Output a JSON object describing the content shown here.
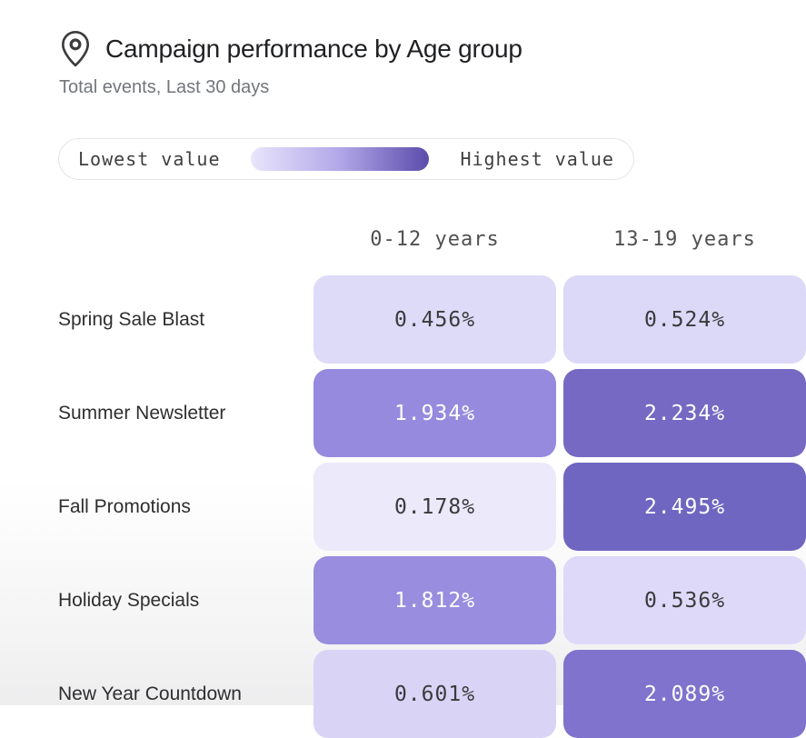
{
  "header": {
    "title": "Campaign performance by Age group",
    "subtitle": "Total events, Last 30 days",
    "icon": "location-pin-icon",
    "title_color": "#202124",
    "subtitle_color": "#72767b"
  },
  "legend": {
    "low_label": "Lowest value",
    "high_label": "Highest value",
    "gradient_start": "#e9e5fb",
    "gradient_mid": "#b2a7e8",
    "gradient_end": "#5b4cab"
  },
  "chart_data": {
    "type": "heatmap",
    "title": "Campaign performance by Age group",
    "subtitle": "Total events, Last 30 days",
    "legend_position": "top",
    "columns": [
      "0-12 years",
      "13-19 years"
    ],
    "rows": [
      "Spring Sale Blast",
      "Summer Newsletter",
      "Fall Promotions",
      "Holiday Specials",
      "New Year Countdown"
    ],
    "values": [
      [
        0.456,
        0.524
      ],
      [
        1.934,
        2.234
      ],
      [
        0.178,
        2.495
      ],
      [
        1.812,
        0.536
      ],
      [
        0.601,
        2.089
      ]
    ],
    "cell_labels": [
      [
        "0.456%",
        "0.524%"
      ],
      [
        "1.934%",
        "2.234%"
      ],
      [
        "0.178%",
        "2.495%"
      ],
      [
        "1.812%",
        "0.536%"
      ],
      [
        "0.601%",
        "2.089%"
      ]
    ],
    "cell_colors": [
      [
        "#dedbf8",
        "#dcd8f7"
      ],
      [
        "#968ade",
        "#7669c3"
      ],
      [
        "#ece9fb",
        "#6f66c1"
      ],
      [
        "#998ddf",
        "#ded9f8"
      ],
      [
        "#d9d4f6",
        "#7f73cd"
      ]
    ],
    "cell_text_colors": [
      [
        "#3a3a3c",
        "#3a3a3c"
      ],
      [
        "#ffffff",
        "#ffffff"
      ],
      [
        "#3a3a3c",
        "#ffffff"
      ],
      [
        "#ffffff",
        "#3a3a3c"
      ],
      [
        "#3a3a3c",
        "#ffffff"
      ]
    ],
    "value_range": [
      0.178,
      2.495
    ]
  }
}
